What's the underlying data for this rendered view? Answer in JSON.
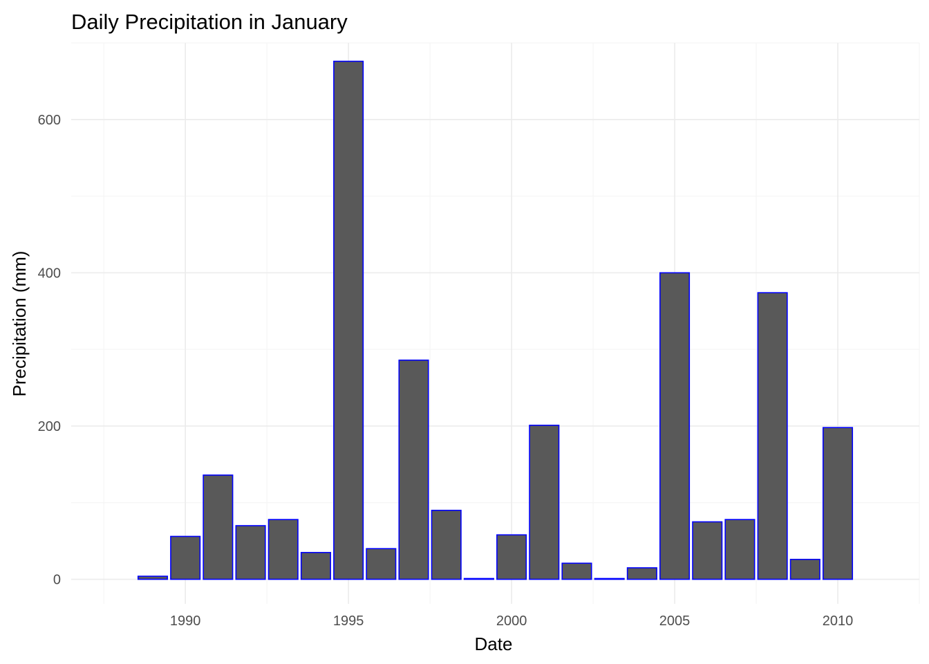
{
  "chart_data": {
    "type": "bar",
    "title": "Daily Precipitation in January",
    "xlabel": "Date",
    "ylabel": "Precipitation (mm)",
    "x": [
      1989,
      1990,
      1991,
      1992,
      1993,
      1994,
      1995,
      1996,
      1997,
      1998,
      1999,
      2000,
      2001,
      2002,
      2003,
      2004,
      2005,
      2006,
      2007,
      2008,
      2009,
      2010
    ],
    "values": [
      4,
      56,
      136,
      70,
      78,
      35,
      676,
      40,
      286,
      90,
      1,
      58,
      201,
      21,
      1,
      15,
      400,
      75,
      78,
      374,
      26,
      198
    ],
    "xlim": [
      1986.5,
      2012.5
    ],
    "ylim": [
      -32,
      700
    ],
    "xticks": [
      1990,
      1995,
      2000,
      2005,
      2010
    ],
    "xtick_labels": [
      "1990",
      "1995",
      "2000",
      "2005",
      "2010"
    ],
    "yticks": [
      0,
      200,
      400,
      600
    ],
    "ytick_labels": [
      "0",
      "200",
      "400",
      "600"
    ],
    "grid": true,
    "theme": "minimal",
    "colors": {
      "bar_fill": "#595959",
      "bar_outline": "#0000ff",
      "grid_major": "#ebebeb",
      "grid_minor": "#f5f5f5"
    }
  }
}
